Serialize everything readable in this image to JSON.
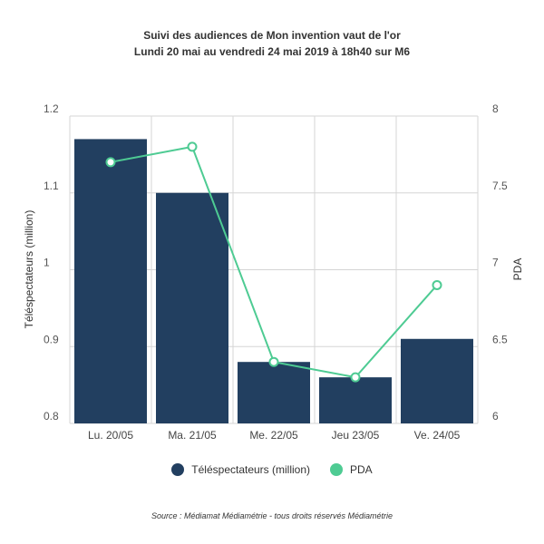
{
  "title_line1": "Suivi des audiences de Mon invention vaut de l'or",
  "title_line2": "Lundi 20 mai au vendredi 24 mai 2019 à 18h40 sur M6",
  "source": "Source : Médiamat Médiamétrie - tous droits réservés Médiamétrie",
  "colors": {
    "bars": "#223f60",
    "line": "#4ecb93",
    "grid": "#d5d5d5"
  },
  "chart_data": {
    "type": "bar",
    "categories": [
      "Lu. 20/05",
      "Ma. 21/05",
      "Me. 22/05",
      "Jeu 23/05",
      "Ve. 24/05"
    ],
    "series": [
      {
        "name": "Téléspectateurs (million)",
        "type": "bar",
        "axis": "left",
        "values": [
          1.17,
          1.1,
          0.88,
          0.86,
          0.91
        ]
      },
      {
        "name": "PDA",
        "type": "line",
        "axis": "right",
        "values": [
          7.7,
          7.8,
          6.4,
          6.3,
          6.9
        ]
      }
    ],
    "ylabel": "Téléspectateurs (million)",
    "ylabel_right": "PDA",
    "ylim": [
      0.8,
      1.2
    ],
    "yticks": [
      "0.8",
      "0.9",
      "1",
      "1.1",
      "1.2"
    ],
    "ylim_right": [
      6,
      8
    ],
    "yticks_right": [
      "6",
      "6.5",
      "7",
      "7.5",
      "8"
    ],
    "grid": true,
    "legend": "bottom-center"
  }
}
